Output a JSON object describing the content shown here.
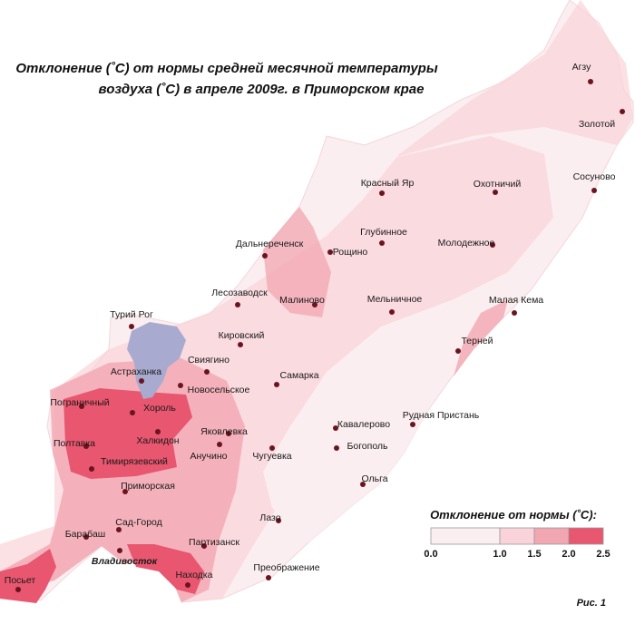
{
  "title": [
    "Отклонение (˚C) от нормы средней  месячной температуры",
    "воздуха (˚C) в апреле 2009г. в Приморском крае"
  ],
  "stations": [
    {
      "name": "Агзу"
    },
    {
      "name": "Золотой"
    },
    {
      "name": "Сосуново"
    },
    {
      "name": "Красный Яр"
    },
    {
      "name": "Охотничий"
    },
    {
      "name": "Глубинное"
    },
    {
      "name": "Молодежное"
    },
    {
      "name": "Дальнереченск"
    },
    {
      "name": "Рощино"
    },
    {
      "name": "Лесозаводск"
    },
    {
      "name": "Малиново"
    },
    {
      "name": "Мельничное"
    },
    {
      "name": "Малая Кема"
    },
    {
      "name": "Турий Рог"
    },
    {
      "name": "Кировский"
    },
    {
      "name": "Терней"
    },
    {
      "name": "Свиягино"
    },
    {
      "name": "Астраханка"
    },
    {
      "name": "Новосельское"
    },
    {
      "name": "Самарка"
    },
    {
      "name": "Пограничный"
    },
    {
      "name": "Хороль"
    },
    {
      "name": "Рудная Пристань"
    },
    {
      "name": "Кавалерово"
    },
    {
      "name": "Яковлевка"
    },
    {
      "name": "Халкидон"
    },
    {
      "name": "Полтавка"
    },
    {
      "name": "Богополь"
    },
    {
      "name": "Анучино"
    },
    {
      "name": "Чугуевка"
    },
    {
      "name": "Тимирязевский"
    },
    {
      "name": "Ольга"
    },
    {
      "name": "Приморская"
    },
    {
      "name": "Лазо"
    },
    {
      "name": "Сад-Город"
    },
    {
      "name": "Барабаш"
    },
    {
      "name": "Партизанск"
    },
    {
      "name": "Владивосток"
    },
    {
      "name": "Преображение"
    },
    {
      "name": "Посьет"
    },
    {
      "name": "Находка"
    }
  ],
  "legend": {
    "title": "Отклонение от нормы (˚C):",
    "ticks": [
      {
        "value": 0,
        "label": "0.0"
      },
      {
        "value": 1,
        "label": "1.0"
      },
      1.5,
      {
        "value": 2,
        "label": "2.0"
      },
      2.5
    ],
    "colors": [
      "#fbeef0",
      "#f9d3d9",
      "#f2a6b2",
      "#e8566f"
    ]
  },
  "figure_label": "Рис. 1"
}
